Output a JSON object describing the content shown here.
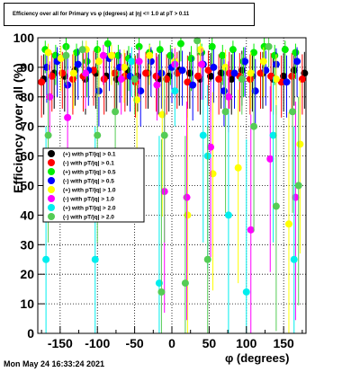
{
  "chart_data": {
    "type": "scatter",
    "title": "Efficiency over all for Primary vs φ (degrees) at |η| <= 1.0 at pT > 0.11",
    "xlabel": "φ (degrees)",
    "ylabel": "Efficiency over all (%)",
    "xlim": [
      -180,
      180
    ],
    "ylim": [
      0,
      100
    ],
    "xticks": [
      -150,
      -100,
      -50,
      0,
      50,
      100,
      150
    ],
    "yticks": [
      0,
      10,
      20,
      30,
      40,
      50,
      60,
      70,
      80,
      90,
      100
    ],
    "grid": true,
    "legend_position": "left-middle",
    "series": [
      {
        "name": "(+) with pT/|q| > 0.1",
        "color": "#000000",
        "x": [
          -172,
          -158,
          -144,
          -130,
          -116,
          -102,
          -88,
          -74,
          -60,
          -46,
          -32,
          -18,
          -4,
          10,
          24,
          38,
          52,
          66,
          80,
          94,
          108,
          122,
          136,
          150,
          164,
          178
        ],
        "y": [
          86,
          88,
          87,
          89,
          86,
          88,
          87,
          86,
          89,
          87,
          88,
          86,
          87,
          89,
          88,
          86,
          87,
          88,
          86,
          89,
          87,
          88,
          86,
          87,
          89,
          88
        ]
      },
      {
        "name": "(-) with pT/|q| > 0.1",
        "color": "#ff0000",
        "x": [
          -175,
          -161,
          -147,
          -133,
          -119,
          -105,
          -91,
          -77,
          -63,
          -49,
          -35,
          -21,
          -7,
          7,
          21,
          35,
          49,
          63,
          77,
          91,
          105,
          119,
          133,
          147,
          161,
          175
        ],
        "y": [
          85,
          87,
          88,
          86,
          87,
          89,
          86,
          88,
          87,
          85,
          88,
          87,
          86,
          88,
          85,
          87,
          89,
          86,
          88,
          87,
          86,
          88,
          87,
          85,
          87,
          86
        ]
      },
      {
        "name": "(+) with pT/|q| > 0.5",
        "color": "#00ee00",
        "x": [
          -170,
          -156,
          -142,
          -128,
          -114,
          -100,
          -86,
          -72,
          -58,
          -44,
          -30,
          -16,
          -2,
          12,
          26,
          40,
          54,
          68,
          82,
          96,
          110,
          124,
          138,
          152,
          166
        ],
        "y": [
          96,
          94,
          97,
          95,
          92,
          96,
          98,
          94,
          93,
          97,
          95,
          96,
          94,
          98,
          93,
          95,
          97,
          94,
          96,
          92,
          95,
          97,
          94,
          96,
          95
        ]
      },
      {
        "name": "(-) with pT/|q| > 0.5",
        "color": "#0000ff",
        "x": [
          -168,
          -154,
          -140,
          -126,
          -112,
          -98,
          -84,
          -70,
          -56,
          -42,
          -28,
          -14,
          0,
          14,
          28,
          42,
          56,
          70,
          84,
          98,
          112,
          126,
          140,
          154,
          168
        ],
        "y": [
          90,
          92,
          84,
          91,
          89,
          82,
          93,
          90,
          87,
          82,
          92,
          88,
          90,
          89,
          84,
          91,
          90,
          82,
          88,
          92,
          82,
          89,
          91,
          85,
          92
        ]
      },
      {
        "name": "(+) with pT/|q| > 1.0",
        "color": "#ffff00",
        "x": [
          -166,
          -149,
          -132,
          -115,
          -98,
          -81,
          -64,
          -47,
          -30,
          -13,
          4,
          21,
          38,
          55,
          72,
          89,
          106,
          123,
          140,
          157,
          172
        ],
        "y": [
          95,
          93,
          88,
          96,
          92,
          94,
          90,
          79,
          94,
          74,
          92,
          40,
          96,
          54,
          90,
          56,
          88,
          92,
          86,
          37,
          64
        ]
      },
      {
        "name": "(-) with pT/|q| > 1.0",
        "color": "#ff00ff",
        "x": [
          -164,
          -140,
          -116,
          -92,
          -68,
          -44,
          -20,
          -10,
          4,
          20,
          40,
          52,
          76,
          106,
          132,
          166
        ],
        "y": [
          80,
          73,
          88,
          94,
          86,
          92,
          84,
          48,
          91,
          46,
          91,
          63,
          80,
          35,
          59,
          46
        ]
      },
      {
        "name": "(+) with pT/|q| > 2.0",
        "color": "#00eeee",
        "x": [
          -169,
          -103,
          -54,
          -17,
          4,
          42,
          48,
          76,
          100,
          136,
          164
        ],
        "y": [
          25,
          25,
          92,
          17,
          82,
          67,
          60,
          40,
          14,
          67,
          25
        ]
      },
      {
        "name": "(-) with pT/|q| > 2.0",
        "color": "#55cc55",
        "x": [
          -166,
          -142,
          -120,
          -100,
          -76,
          -50,
          -14,
          -10,
          18,
          34,
          48,
          72,
          94,
          110,
          130,
          140,
          162,
          170
        ],
        "y": [
          67,
          94,
          96,
          67,
          75,
          86,
          14,
          67,
          17,
          99,
          25,
          75,
          86,
          70,
          97,
          43,
          75,
          50
        ]
      }
    ]
  }
}
